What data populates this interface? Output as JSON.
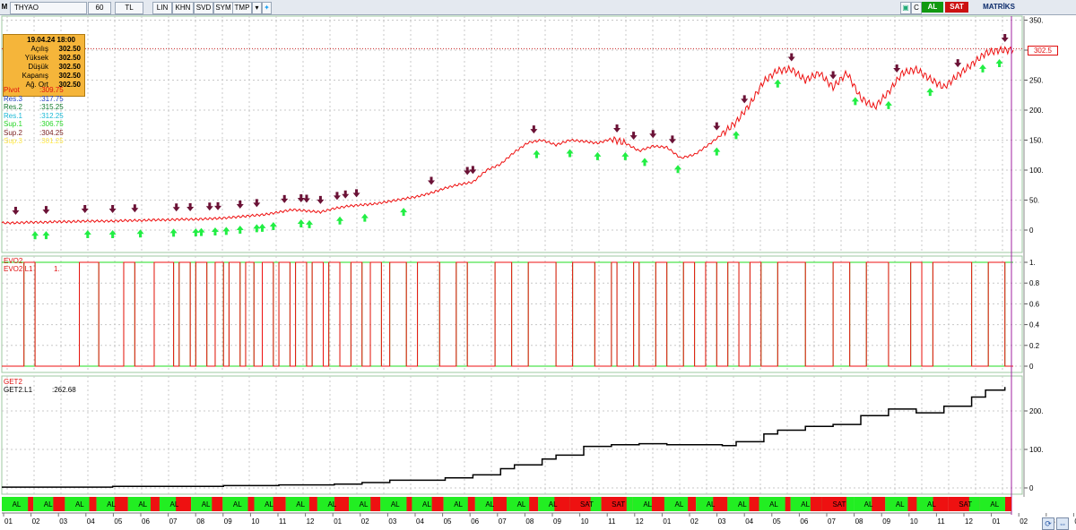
{
  "toolbar": {
    "symbol": "THYAO",
    "period": "60",
    "currency": "TL",
    "buttons": [
      "LIN",
      "KHN",
      "SVD",
      "SYM",
      "TMP"
    ],
    "buy": "AL",
    "sell": "SAT",
    "brand": "MATRİKS",
    "c_button": "C"
  },
  "info_box": {
    "date": "19.04.24 18:00",
    "rows": [
      {
        "label": "Açılış",
        "value": "302.50"
      },
      {
        "label": "Yüksek",
        "value": "302.50"
      },
      {
        "label": "Düşük",
        "value": "302.50"
      },
      {
        "label": "Kapanış",
        "value": "302.50"
      },
      {
        "label": "Ağ. Ort",
        "value": "302.50"
      }
    ]
  },
  "levels": [
    {
      "label": "Pivot",
      "value": ":309.75",
      "color": "#e01010"
    },
    {
      "label": "Res.3",
      "value": ":317.75",
      "color": "#1f3fbf"
    },
    {
      "label": "Res.2",
      "value": ":315.25",
      "color": "#117a2d"
    },
    {
      "label": "Res.1",
      "value": ":312.25",
      "color": "#19b9d6"
    },
    {
      "label": "Sup.1",
      "value": ":306.75",
      "color": "#27d627"
    },
    {
      "label": "Sup.2",
      "value": ":304.25",
      "color": "#7a1f1f"
    },
    {
      "label": "Sup.3",
      "value": ":301.25",
      "color": "#ffe84a"
    }
  ],
  "last_price_tag": "302.5",
  "colors": {
    "price": "#ee1111",
    "buy_arrow": "#22ee44",
    "sell_arrow": "#6b1236",
    "equity": "#000000",
    "buy_bar": "#22ee22",
    "sell_bar": "#ee1111",
    "grid": "#c8c8c8",
    "vline": "#a020a0"
  },
  "chart_data": [
    {
      "type": "line",
      "title": "THYAO",
      "y_ticks": [
        "0",
        "50",
        "100",
        "150",
        "200",
        "250",
        "300",
        "350"
      ],
      "ylim": [
        -10,
        355
      ],
      "x": [
        0,
        5,
        10,
        15,
        20,
        25,
        30,
        35,
        40,
        45,
        50,
        55,
        60,
        65,
        70,
        75,
        80,
        85,
        90,
        95,
        100,
        105,
        110,
        115,
        120,
        125,
        130,
        135,
        140,
        145,
        150,
        155,
        160,
        165,
        170,
        175,
        180,
        185,
        190,
        195,
        200,
        205,
        210,
        215,
        220,
        225,
        230,
        235,
        240,
        245,
        250,
        255,
        260,
        265,
        270,
        275,
        280,
        285,
        290,
        295,
        300,
        305,
        310,
        315,
        320,
        325,
        330,
        335,
        340,
        345,
        350,
        355,
        360,
        365
      ],
      "values": [
        12,
        12,
        13,
        13,
        14,
        14,
        15,
        15,
        15,
        16,
        16,
        17,
        17,
        18,
        18,
        19,
        20,
        22,
        24,
        26,
        30,
        34,
        32,
        30,
        36,
        40,
        42,
        44,
        48,
        52,
        56,
        62,
        70,
        76,
        80,
        100,
        110,
        130,
        146,
        150,
        142,
        150,
        148,
        145,
        152,
        145,
        132,
        140,
        138,
        120,
        126,
        142,
        160,
        180,
        210,
        248,
        266,
        268,
        250,
        262,
        238,
        262,
        220,
        205,
        230,
        262,
        268,
        252,
        238,
        258,
        276,
        295,
        300,
        300
      ],
      "grid": true,
      "series": [
        {
          "name": "Pivot"
        },
        {
          "name": "Res.3"
        },
        {
          "name": "Res.2"
        },
        {
          "name": "Res.1"
        },
        {
          "name": "Sup.1"
        },
        {
          "name": "Sup.2"
        },
        {
          "name": "Sup.3"
        }
      ],
      "buy_signals_x": [
        12,
        16,
        31,
        40,
        50,
        62,
        70,
        72,
        77,
        81,
        86,
        92,
        94,
        98,
        108,
        111,
        122,
        131,
        145,
        193,
        205,
        215,
        225,
        232,
        244,
        258,
        265,
        280,
        308,
        320,
        335,
        354,
        360
      ],
      "sell_signals_x": [
        5,
        16,
        30,
        40,
        48,
        63,
        68,
        75,
        78,
        86,
        92,
        102,
        108,
        110,
        115,
        121,
        124,
        128,
        155,
        168,
        170,
        192,
        222,
        228,
        235,
        242,
        258,
        268,
        285,
        300,
        323,
        345,
        362
      ],
      "dates_axis": [
        "01",
        "02",
        "03",
        "04",
        "05",
        "06",
        "07",
        "08",
        "09",
        "10",
        "11",
        "12",
        "01",
        "02",
        "03",
        "04",
        "05",
        "06",
        "07",
        "08",
        "09",
        "10",
        "11",
        "12",
        "01",
        "02",
        "03",
        "04",
        "05",
        "06",
        "07",
        "08",
        "09",
        "10",
        "11",
        "12",
        "01",
        "02",
        "03",
        "04"
      ]
    },
    {
      "type": "line",
      "title": "EVO2",
      "series": [
        {
          "name": "EVO2.L1",
          "value": "1."
        }
      ],
      "y_ticks": [
        "0",
        "0.2",
        "0.4",
        "0.6",
        "0.8",
        "1."
      ],
      "ylim": [
        0,
        1
      ],
      "switch_x": [
        8,
        12,
        28,
        35,
        44,
        48,
        55,
        62,
        64,
        68,
        70,
        74,
        77,
        80,
        82,
        86,
        88,
        91,
        94,
        98,
        100,
        104,
        106,
        110,
        112,
        116,
        118,
        122,
        126,
        130,
        133,
        137,
        140,
        146,
        150,
        158,
        164,
        168,
        178,
        184,
        190,
        200,
        206,
        214,
        220,
        222,
        228,
        230,
        236,
        240,
        246,
        250,
        254,
        258,
        262,
        266,
        270,
        274,
        280,
        290,
        300,
        306,
        312,
        320,
        328,
        332,
        336,
        350,
        356,
        362
      ]
    },
    {
      "type": "line",
      "title": "GET2",
      "series": [
        {
          "name": "GET2.L1",
          "value": ":262.68"
        }
      ],
      "y_ticks": [
        "0",
        "100.",
        "200."
      ],
      "ylim": [
        -5,
        280
      ],
      "x": [
        0,
        40,
        80,
        100,
        120,
        130,
        140,
        160,
        170,
        180,
        185,
        195,
        200,
        210,
        220,
        230,
        240,
        260,
        265,
        275,
        280,
        290,
        300,
        310,
        320,
        330,
        340,
        350,
        355,
        362
      ],
      "values": [
        2,
        4,
        6,
        8,
        10,
        14,
        20,
        26,
        34,
        50,
        60,
        75,
        85,
        108,
        112,
        115,
        112,
        110,
        120,
        140,
        150,
        160,
        165,
        188,
        205,
        195,
        212,
        236,
        254,
        262
      ]
    }
  ],
  "signal_bar": {
    "labels": [
      "AL",
      "AL",
      "AL",
      "AL",
      "AL",
      "AL",
      "AL",
      "AL",
      "AL",
      "AL",
      "AL",
      "AL",
      "AL",
      "AL",
      "AL",
      "AL",
      "AL",
      "AL",
      "SAT",
      "SAT",
      "AL",
      "AL",
      "AL",
      "AL",
      "AL",
      "AL",
      "SAT",
      "AL",
      "AL",
      "AL",
      "SAT",
      "AL"
    ]
  }
}
